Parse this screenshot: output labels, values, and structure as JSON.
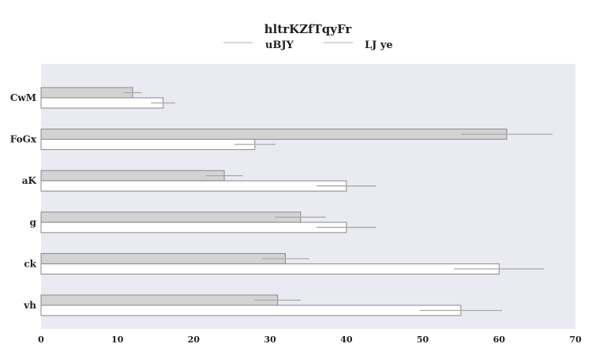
{
  "chart_data": {
    "type": "bar",
    "orientation": "horizontal",
    "title": "hltrKZfTqyFr",
    "categories": [
      "CwM",
      "FoGx",
      "aK",
      "g",
      "ck",
      "vh"
    ],
    "series": [
      {
        "name": "uBJY",
        "color": "#d3d3d3",
        "values": [
          12,
          61,
          24,
          34,
          32,
          31
        ],
        "errors": [
          1.2,
          6.0,
          2.4,
          3.3,
          3.1,
          3.0
        ]
      },
      {
        "name": "LJ ye",
        "color": "#ffffff",
        "values": [
          16,
          28,
          40,
          40,
          60,
          55
        ],
        "errors": [
          1.6,
          2.7,
          3.9,
          3.9,
          5.9,
          5.4
        ]
      }
    ],
    "xlim": [
      0,
      70
    ],
    "xticks": [
      0,
      10,
      20,
      30,
      40,
      50,
      60,
      70
    ],
    "xlabel": "",
    "ylabel": "",
    "grid": false,
    "legend_position": "top-center",
    "background_color": "#eaeaf2",
    "edge_color": "#888888",
    "error_color": "#aaaaaa"
  }
}
